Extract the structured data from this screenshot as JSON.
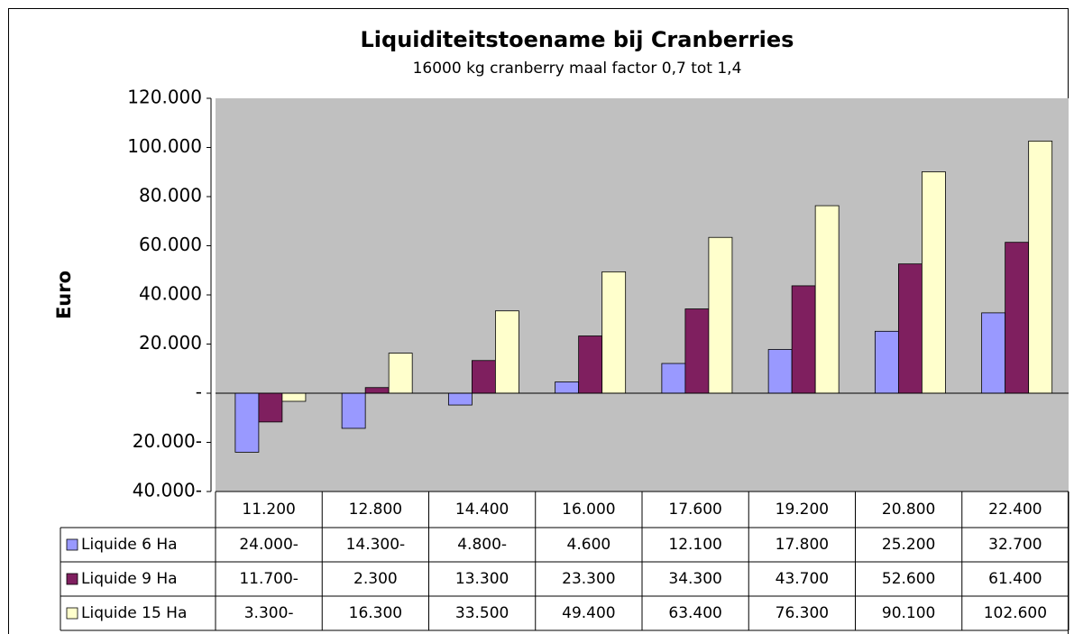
{
  "chart_data": {
    "type": "bar",
    "title": "Liquiditeitstoename bij Cranberries",
    "subtitle": "16000 kg cranberry maal factor 0,7 tot 1,4",
    "y_label": "Euro",
    "categories": [
      "11.200",
      "12.800",
      "14.400",
      "16.000",
      "17.600",
      "19.200",
      "20.800",
      "22.400"
    ],
    "series": [
      {
        "name": "Liquide 6 Ha",
        "color": "#9999ff",
        "values": [
          -24000,
          -14300,
          -4800,
          4600,
          12100,
          17800,
          25200,
          32700
        ],
        "value_labels": [
          "24.000-",
          "14.300-",
          "4.800-",
          "4.600",
          "12.100",
          "17.800",
          "25.200",
          "32.700"
        ]
      },
      {
        "name": "Liquide 9 Ha",
        "color": "#7f1f5f",
        "values": [
          -11700,
          2300,
          13300,
          23300,
          34300,
          43700,
          52600,
          61400
        ],
        "value_labels": [
          "11.700-",
          "2.300",
          "13.300",
          "23.300",
          "34.300",
          "43.700",
          "52.600",
          "61.400"
        ]
      },
      {
        "name": "Liquide 15 Ha",
        "color": "#ffffcc",
        "values": [
          -3300,
          16300,
          33500,
          49400,
          63400,
          76300,
          90100,
          102600
        ],
        "value_labels": [
          "3.300-",
          "16.300",
          "33.500",
          "49.400",
          "63.400",
          "76.300",
          "90.100",
          "102.600"
        ]
      }
    ],
    "ylim": [
      -40000,
      120000
    ],
    "yticks": [
      {
        "value": -40000,
        "label": "40.000-"
      },
      {
        "value": -20000,
        "label": "20.000-"
      },
      {
        "value": 0,
        "label": "-"
      },
      {
        "value": 20000,
        "label": "20.000"
      },
      {
        "value": 40000,
        "label": "40.000"
      },
      {
        "value": 60000,
        "label": "60.000"
      },
      {
        "value": 80000,
        "label": "80.000"
      },
      {
        "value": 100000,
        "label": "100.000"
      },
      {
        "value": 120000,
        "label": "120.000"
      }
    ],
    "grid": false,
    "plot_background": "#c0c0c0"
  }
}
